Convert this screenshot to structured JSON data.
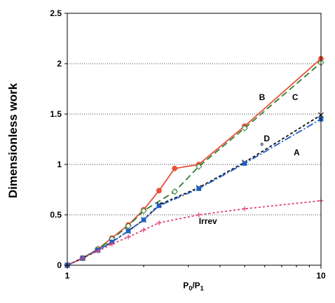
{
  "chart_data": {
    "type": "line",
    "xscale": "log",
    "xlim": [
      1,
      10
    ],
    "ylim": [
      0,
      2.5
    ],
    "xticks": [
      "1",
      "10"
    ],
    "yticks": [
      "0",
      "0.5",
      "1",
      "1.5",
      "2",
      "2.5"
    ],
    "xlabel_main": "P",
    "xlabel_sub1": "0",
    "xlabel_slash": "/P",
    "xlabel_sub2": "1",
    "ylabel": "Dimensionless work",
    "grid": "horizontal-dotted",
    "annotations": [
      {
        "text": "B",
        "x": 5.7,
        "y": 1.64
      },
      {
        "text": "C",
        "x": 7.7,
        "y": 1.64
      },
      {
        "text": "D",
        "x": 5.95,
        "y": 1.23
      },
      {
        "text": "A",
        "x": 7.8,
        "y": 1.09
      },
      {
        "text": "Irrev",
        "x": 3.3,
        "y": 0.41
      }
    ],
    "series": [
      {
        "key": "B",
        "color": "#e8503a",
        "dash": "",
        "marker": "circle",
        "x": [
          1,
          1.15,
          1.32,
          1.5,
          1.74,
          2.0,
          2.3,
          2.65,
          3.3,
          5.0,
          10
        ],
        "y": [
          0,
          0.07,
          0.16,
          0.27,
          0.4,
          0.55,
          0.74,
          0.96,
          1.0,
          1.38,
          2.05
        ]
      },
      {
        "key": "C",
        "color": "#2e7d32",
        "dash": "9,5",
        "marker": "diamond",
        "x": [
          1,
          1.15,
          1.32,
          1.5,
          1.74,
          2.0,
          2.65,
          3.3,
          5.0,
          10
        ],
        "y": [
          0,
          0.07,
          0.16,
          0.26,
          0.39,
          0.54,
          0.73,
          0.98,
          1.36,
          2.01
        ]
      },
      {
        "key": "D",
        "color": "#111111",
        "dash": "4,3",
        "marker": "x",
        "x": [
          1,
          1.15,
          1.32,
          1.5,
          1.74,
          2.0,
          2.3,
          3.3,
          5.0,
          10
        ],
        "y": [
          0,
          0.07,
          0.15,
          0.23,
          0.34,
          0.45,
          0.6,
          0.77,
          1.02,
          1.49
        ]
      },
      {
        "key": "A",
        "color": "#1f5fc4",
        "dash": "10,3,2,3",
        "marker": "square",
        "x": [
          1,
          1.15,
          1.32,
          1.5,
          1.74,
          2.0,
          2.3,
          3.3,
          5.0,
          10
        ],
        "y": [
          0,
          0.07,
          0.15,
          0.23,
          0.34,
          0.45,
          0.59,
          0.76,
          1.01,
          1.45
        ]
      },
      {
        "key": "Irrev",
        "color": "#e0407a",
        "dash": "3,3",
        "marker": "plus",
        "x": [
          1,
          1.15,
          1.32,
          1.5,
          1.74,
          2.0,
          2.3,
          3.3,
          5.0,
          10
        ],
        "y": [
          0,
          0.07,
          0.14,
          0.21,
          0.28,
          0.35,
          0.42,
          0.5,
          0.56,
          0.64
        ]
      }
    ]
  }
}
